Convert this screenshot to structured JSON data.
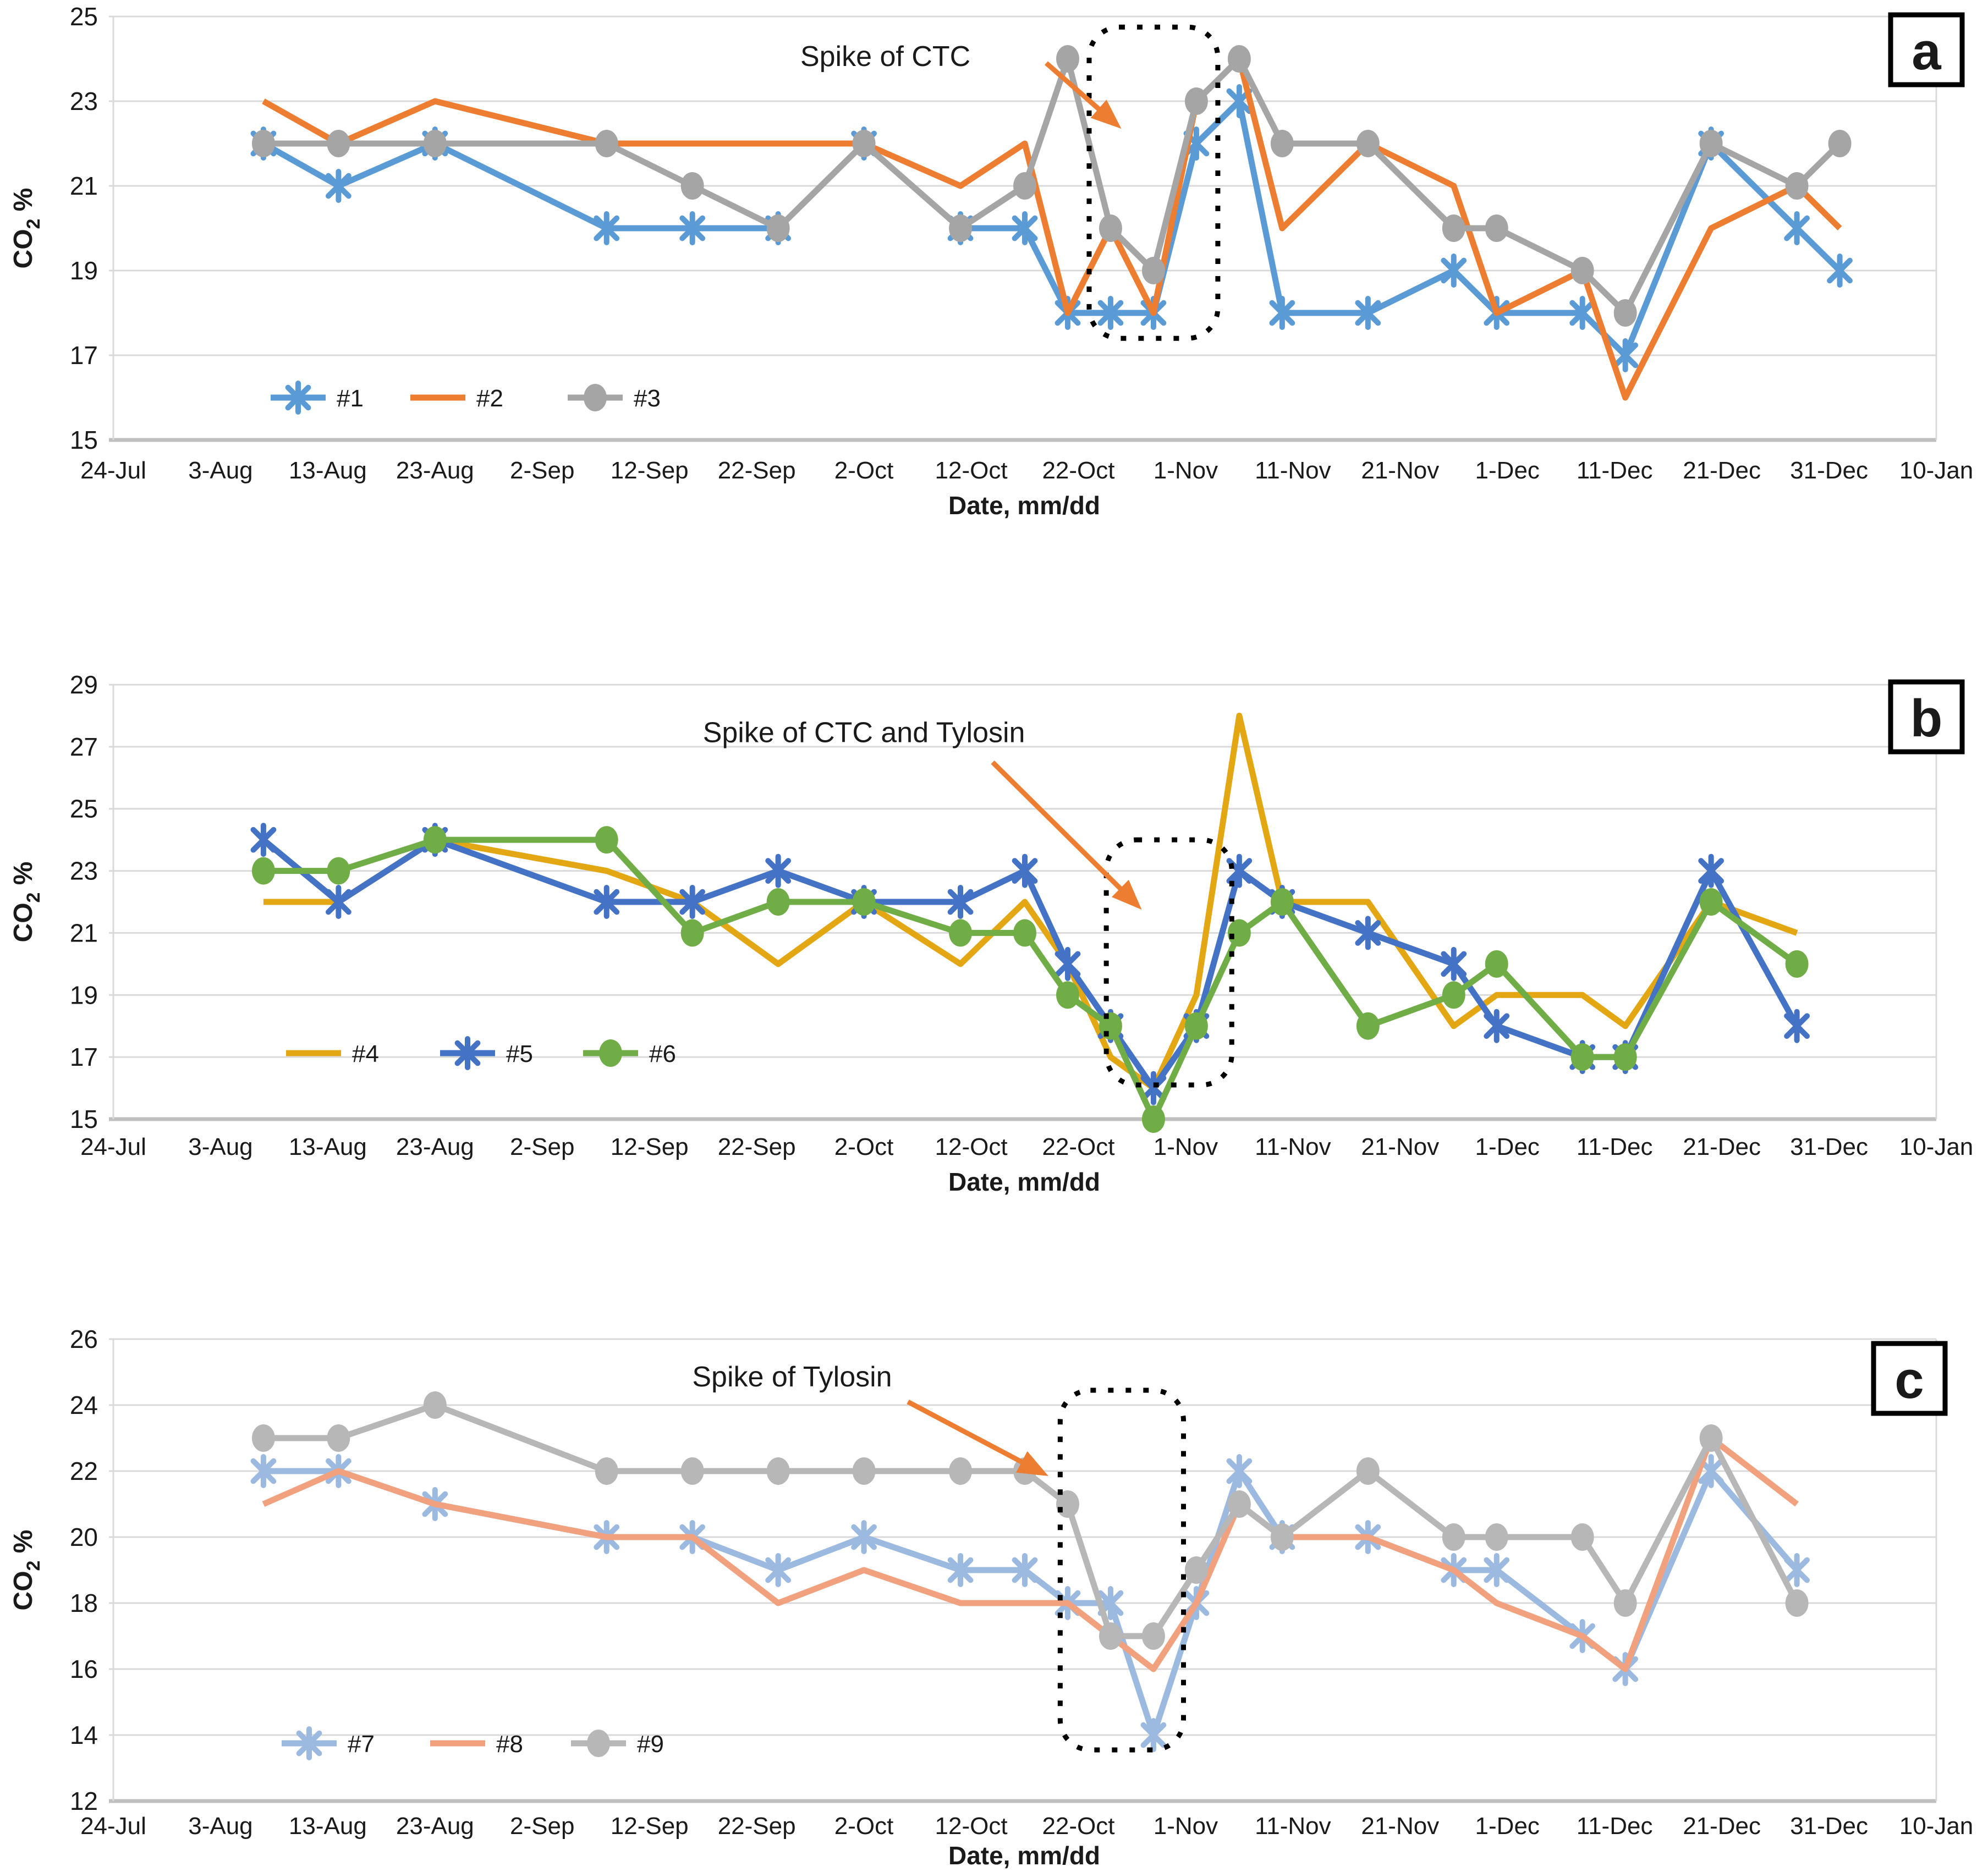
{
  "chart_data": {
    "type": "line",
    "x_axis": {
      "title": "Date, mm/dd",
      "tick_labels": [
        "24-Jul",
        "3-Aug",
        "13-Aug",
        "23-Aug",
        "2-Sep",
        "12-Sep",
        "22-Sep",
        "2-Oct",
        "12-Oct",
        "22-Oct",
        "1-Nov",
        "11-Nov",
        "21-Nov",
        "1-Dec",
        "11-Dec",
        "21-Dec",
        "31-Dec",
        "10-Jan"
      ],
      "tick_days": [
        0,
        10,
        20,
        30,
        40,
        50,
        60,
        70,
        80,
        90,
        100,
        110,
        120,
        130,
        140,
        150,
        160,
        170
      ],
      "range_days": [
        0,
        170
      ]
    },
    "y_axis_title": {
      "text": "CO2 %",
      "prefix": "CO",
      "sub": "2",
      "suffix": " %"
    },
    "colors": {
      "annotation_arrow": "#ED7D31",
      "gridline": "#D9D9D9",
      "axis": "#BFBFBF"
    },
    "charts": [
      {
        "id": "a",
        "corner_label": "a",
        "ylim": [
          15,
          25
        ],
        "yticks": [
          15,
          17,
          19,
          21,
          23,
          25
        ],
        "plot": {
          "top": 30,
          "bottom": 800
        },
        "tick_y": 870,
        "xlabel_y": 935,
        "annotation": {
          "text": "Spike of CTC",
          "center_day": 72,
          "center_val": 24.05,
          "arrow": {
            "from_day": 87.0,
            "from_val": 23.9,
            "to_day": 94.0,
            "to_val": 22.35
          }
        },
        "spike_box": {
          "d0": 91,
          "d1": 103,
          "v0": 24.75,
          "v1": 17.4
        },
        "corner_box": {
          "x": 3437,
          "y": 27,
          "w": 130,
          "h": 127
        },
        "legend": {
          "y": 723,
          "items_x": [
            492,
            746,
            1032
          ]
        },
        "x_dates": [
          "7-Aug",
          "14-Aug",
          "23-Aug",
          "8-Sep",
          "16-Sep",
          "24-Sep",
          "2-Oct",
          "11-Oct",
          "17-Oct",
          "21-Oct",
          "25-Oct",
          "29-Oct",
          "2-Nov",
          "6-Nov",
          "10-Nov",
          "18-Nov",
          "26-Nov",
          "30-Nov",
          "8-Dec",
          "12-Dec",
          "20-Dec",
          "28-Dec",
          "1-Jan"
        ],
        "x_days": [
          14,
          21,
          30,
          46,
          54,
          62,
          70,
          79,
          85,
          89,
          93,
          97,
          101,
          105,
          109,
          117,
          125,
          129,
          137,
          141,
          149,
          157,
          161
        ],
        "series": [
          {
            "name": "#1",
            "color": "#5B9BD5",
            "marker": "asterisk",
            "values": [
              22,
              21,
              22,
              20,
              20,
              20,
              22,
              20,
              20,
              18,
              18,
              18,
              22,
              23,
              18,
              18,
              19,
              18,
              18,
              17,
              22,
              20,
              19
            ]
          },
          {
            "name": "#2",
            "color": "#ED7D31",
            "marker": "none",
            "values": [
              23,
              22,
              23,
              22,
              22,
              22,
              22,
              21,
              22,
              18,
              20,
              18,
              23,
              24,
              20,
              22,
              21,
              18,
              19,
              16,
              20,
              21,
              20
            ]
          },
          {
            "name": "#3",
            "color": "#A5A5A5",
            "marker": "circle",
            "values": [
              22,
              22,
              22,
              22,
              21,
              20,
              22,
              20,
              21,
              24,
              20,
              19,
              23,
              24,
              22,
              22,
              20,
              20,
              19,
              18,
              22,
              21,
              22
            ]
          }
        ]
      },
      {
        "id": "b",
        "corner_label": "b",
        "ylim": [
          15,
          29
        ],
        "yticks": [
          15,
          17,
          19,
          21,
          23,
          25,
          27,
          29
        ],
        "plot": {
          "top": 105,
          "bottom": 895
        },
        "tick_y": 960,
        "xlabel_y": 1025,
        "annotation": {
          "text": "Spike of CTC and Tylosin",
          "center_day": 70,
          "center_val": 27.45,
          "arrow": {
            "from_day": 82.0,
            "from_val": 26.5,
            "to_day": 95.9,
            "to_val": 21.75
          }
        },
        "spike_box": {
          "d0": 92.6,
          "d1": 104.3,
          "v0": 24.0,
          "v1": 16.1
        },
        "corner_box": {
          "x": 3437,
          "y": 100,
          "w": 130,
          "h": 127
        },
        "legend": {
          "y": 775,
          "items_x": [
            520,
            800,
            1060
          ]
        },
        "x_dates": [
          "7-Aug",
          "14-Aug",
          "23-Aug",
          "8-Sep",
          "16-Sep",
          "24-Sep",
          "2-Oct",
          "11-Oct",
          "17-Oct",
          "21-Oct",
          "25-Oct",
          "29-Oct",
          "2-Nov",
          "6-Nov",
          "10-Nov",
          "18-Nov",
          "26-Nov",
          "30-Nov",
          "8-Dec",
          "12-Dec",
          "20-Dec",
          "28-Dec"
        ],
        "x_days": [
          14,
          21,
          30,
          46,
          54,
          62,
          70,
          79,
          85,
          89,
          93,
          97,
          101,
          105,
          109,
          117,
          125,
          129,
          137,
          141,
          149,
          157
        ],
        "series": [
          {
            "name": "#4",
            "color": "#E3A713",
            "marker": "none",
            "values": [
              22,
              22,
              24,
              23,
              22,
              20,
              22,
              20,
              22,
              20,
              17,
              16,
              19,
              28,
              22,
              22,
              18,
              19,
              19,
              18,
              22,
              21
            ]
          },
          {
            "name": "#5",
            "color": "#4472C4",
            "marker": "asterisk",
            "values": [
              24,
              22,
              24,
              22,
              22,
              23,
              22,
              22,
              23,
              20,
              18,
              16,
              18,
              23,
              22,
              21,
              20,
              18,
              17,
              17,
              23,
              18
            ]
          },
          {
            "name": "#6",
            "color": "#70AD47",
            "marker": "circle",
            "values": [
              23,
              23,
              24,
              24,
              21,
              22,
              22,
              21,
              21,
              19,
              18,
              15,
              18,
              21,
              22,
              18,
              19,
              20,
              17,
              17,
              22,
              20
            ]
          }
        ]
      },
      {
        "id": "c",
        "corner_label": "c",
        "ylim": [
          12,
          26
        ],
        "yticks": [
          12,
          14,
          16,
          18,
          20,
          22,
          24,
          26
        ],
        "plot": {
          "top": 65,
          "bottom": 905
        },
        "tick_y": 965,
        "xlabel_y": 1020,
        "annotation": {
          "text": "Spike of Tylosin",
          "center_day": 63.3,
          "center_val": 24.85,
          "arrow": {
            "from_day": 74.1,
            "from_val": 24.1,
            "to_day": 87.2,
            "to_val": 21.85
          }
        },
        "spike_box": {
          "d0": 88.3,
          "d1": 99.8,
          "v0": 24.45,
          "v1": 13.55
        },
        "corner_box": {
          "x": 3406,
          "y": 73,
          "w": 130,
          "h": 127
        },
        "legend": {
          "y": 800,
          "items_x": [
            512,
            782,
            1038
          ]
        },
        "x_dates": [
          "7-Aug",
          "14-Aug",
          "23-Aug",
          "8-Sep",
          "16-Sep",
          "24-Sep",
          "2-Oct",
          "11-Oct",
          "17-Oct",
          "21-Oct",
          "25-Oct",
          "29-Oct",
          "2-Nov",
          "6-Nov",
          "10-Nov",
          "18-Nov",
          "26-Nov",
          "30-Nov",
          "8-Dec",
          "12-Dec",
          "20-Dec",
          "28-Dec"
        ],
        "x_days": [
          14,
          21,
          30,
          46,
          54,
          62,
          70,
          79,
          85,
          89,
          93,
          97,
          101,
          105,
          109,
          117,
          125,
          129,
          137,
          141,
          149,
          157
        ],
        "series": [
          {
            "name": "#7",
            "color": "#9CBAE0",
            "marker": "asterisk",
            "values": [
              22,
              22,
              21,
              20,
              20,
              19,
              20,
              19,
              19,
              18,
              18,
              14,
              18,
              22,
              20,
              20,
              19,
              19,
              17,
              16,
              22,
              19
            ]
          },
          {
            "name": "#8",
            "color": "#F2A17E",
            "marker": "none",
            "values": [
              21,
              22,
              21,
              20,
              20,
              18,
              19,
              18,
              18,
              18,
              17,
              16,
              18,
              21,
              20,
              20,
              19,
              18,
              17,
              16,
              23,
              21
            ]
          },
          {
            "name": "#9",
            "color": "#B7B7B7",
            "marker": "circle",
            "values": [
              23,
              23,
              24,
              22,
              22,
              22,
              22,
              22,
              22,
              21,
              17,
              17,
              19,
              21,
              20,
              22,
              20,
              20,
              20,
              18,
              23,
              18
            ]
          }
        ]
      }
    ]
  }
}
